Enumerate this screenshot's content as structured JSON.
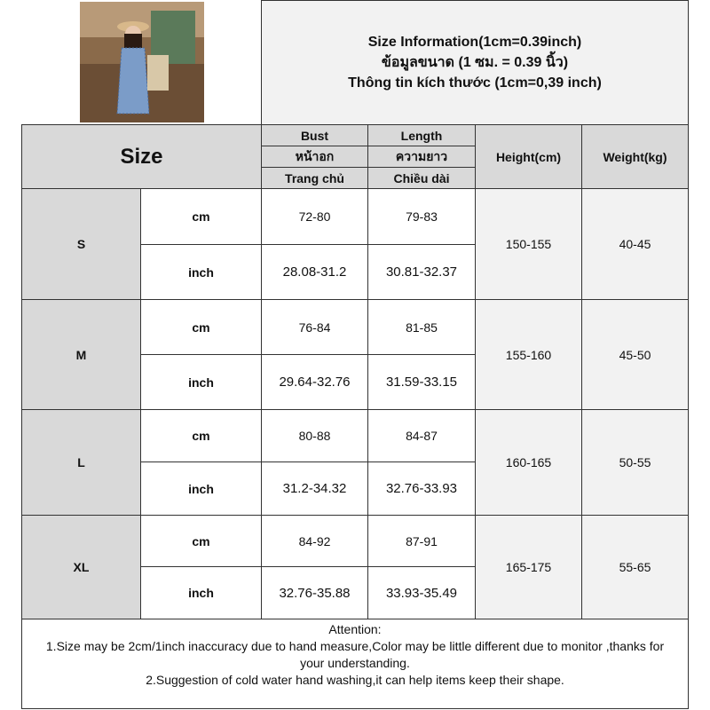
{
  "title": {
    "line1": "Size Information(1cm=0.39inch)",
    "line2": "ข้อมูลขนาด (1 ซม. = 0.39 นิ้ว)",
    "line3": "Thông tin kích thước (1cm=0,39 inch)"
  },
  "header": {
    "size": "Size",
    "bust": [
      "Bust",
      "หน้าอก",
      "Trang chủ"
    ],
    "length": [
      "Length",
      "ความยาว",
      "Chiều dài"
    ],
    "height": "Height(cm)",
    "weight": "Weight(kg)"
  },
  "rows": [
    {
      "size": "S",
      "cm_label": "cm",
      "inch_label": "inch",
      "bust_cm": "72-80",
      "length_cm": "79-83",
      "bust_inch": "28.08-31.2",
      "length_inch": "30.81-32.37",
      "height": "150-155",
      "weight": "40-45"
    },
    {
      "size": "M",
      "cm_label": "cm",
      "inch_label": "inch",
      "bust_cm": "76-84",
      "length_cm": "81-85",
      "bust_inch": "29.64-32.76",
      "length_inch": "31.59-33.15",
      "height": "155-160",
      "weight": "45-50"
    },
    {
      "size": "L",
      "cm_label": "cm",
      "inch_label": "inch",
      "bust_cm": "80-88",
      "length_cm": "84-87",
      "bust_inch": "31.2-34.32",
      "length_inch": "32.76-33.93",
      "height": "160-165",
      "weight": "50-55"
    },
    {
      "size": "XL",
      "cm_label": "cm",
      "inch_label": "inch",
      "bust_cm": "84-92",
      "length_cm": "87-91",
      "bust_inch": "32.76-35.88",
      "length_inch": "33.93-35.49",
      "height": "165-175",
      "weight": "55-65"
    }
  ],
  "attention": {
    "heading": "Attention:",
    "line1": "1.Size may be 2cm/1inch inaccuracy due to hand measure,Color may be little different due to monitor ,thanks for your understanding.",
    "line2": "2.Suggestion of cold water hand washing,it can help items keep their shape."
  }
}
